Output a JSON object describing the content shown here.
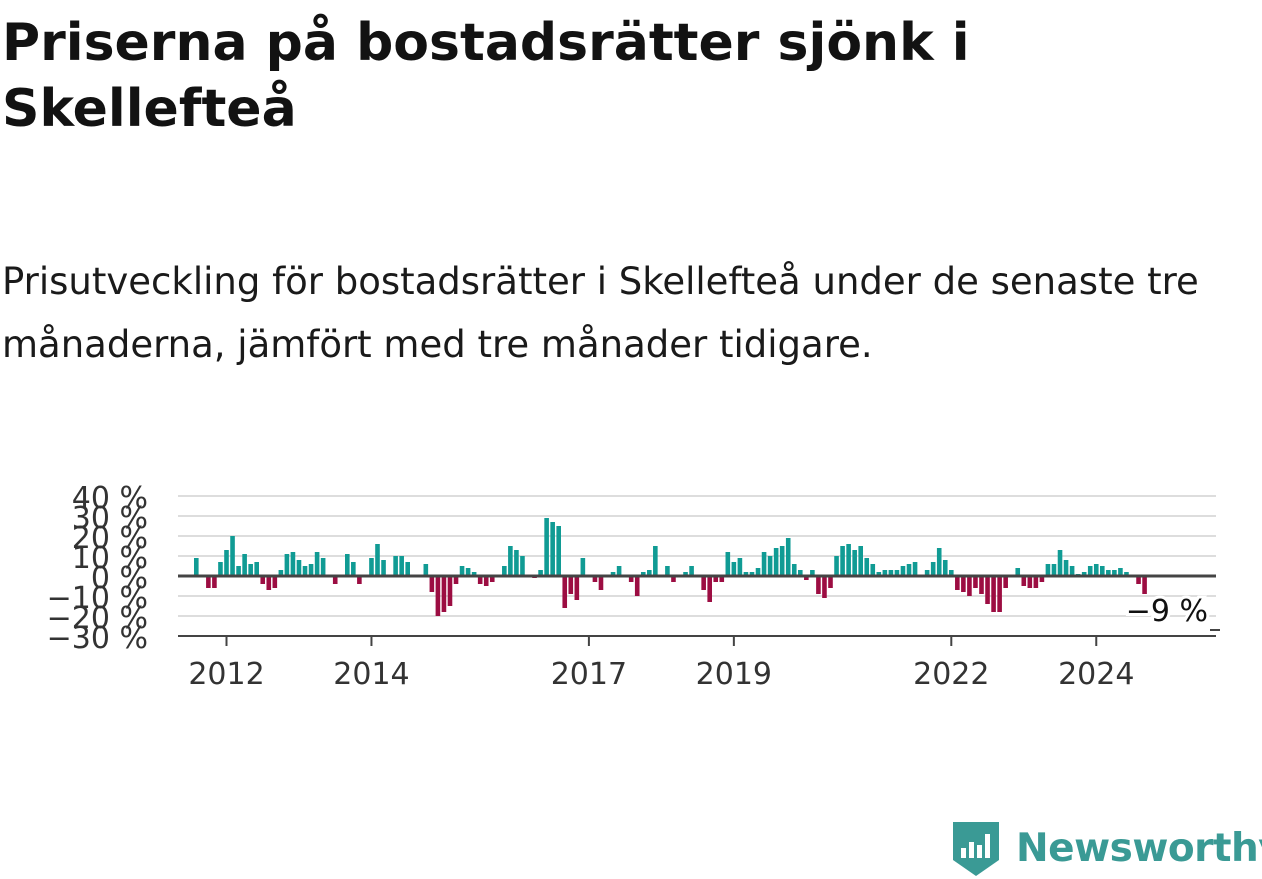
{
  "title": "Priserna på bostadsrätter sjönk i Skellefteå",
  "subtitle": "Prisutveckling för bostadsrätter i Skellefteå under de senaste tre månaderna, jämfört med tre månader tidigare.",
  "brand": {
    "name": "Newsworthy",
    "color": "#3a9a95",
    "icon": "newsworthy-bar-chart-badge-icon"
  },
  "chart_data": {
    "type": "bar",
    "x_start": "2011-08",
    "frequency": "monthly",
    "y_unit": "%",
    "ylim": [
      -30,
      40
    ],
    "yticks": [
      40,
      30,
      20,
      10,
      0,
      -10,
      -20,
      -30
    ],
    "ytick_labels": [
      "40 %",
      "30 %",
      "20 %",
      "10 %",
      "0 %",
      "−10 %",
      "−20 %",
      "−30 %"
    ],
    "xticks": [
      2012,
      2014,
      2017,
      2019,
      2022,
      2024
    ],
    "xtick_labels": [
      "2012",
      "2014",
      "2017",
      "2019",
      "2022",
      "2024"
    ],
    "colors": {
      "positive": "#109b94",
      "negative": "#9c0d42",
      "zero_line": "#444444",
      "grid": "#dddddd"
    },
    "annotation": {
      "label": "−9 %",
      "value": -9
    },
    "values": [
      9,
      0,
      -6,
      -6,
      7,
      13,
      20,
      5,
      11,
      6,
      7,
      -4,
      -7,
      -6,
      3,
      11,
      12,
      8,
      5,
      6,
      12,
      9,
      0,
      -4,
      0,
      11,
      7,
      -4,
      0,
      9,
      16,
      8,
      0,
      10,
      10,
      7,
      0,
      0,
      6,
      -8,
      -20,
      -18,
      -15,
      -4,
      5,
      4,
      2,
      -4,
      -5,
      -3,
      0,
      5,
      15,
      13,
      10,
      0,
      -1,
      3,
      29,
      27,
      25,
      -16,
      -9,
      -12,
      9,
      0,
      -3,
      -7,
      0,
      2,
      5,
      0,
      -3,
      -10,
      2,
      3,
      15,
      0,
      5,
      -3,
      0,
      2,
      5,
      0,
      -7,
      -13,
      -3,
      -3,
      12,
      7,
      9,
      2,
      2,
      4,
      12,
      10,
      14,
      15,
      19,
      6,
      3,
      -2,
      3,
      -9,
      -11,
      -6,
      10,
      15,
      16,
      13,
      15,
      9,
      6,
      2,
      3,
      3,
      3,
      5,
      6,
      7,
      0,
      3,
      7,
      14,
      8,
      3,
      -7,
      -8,
      -10,
      -6,
      -9,
      -14,
      -18,
      -18,
      -6,
      0,
      4,
      -5,
      -6,
      -6,
      -3,
      6,
      6,
      13,
      8,
      5,
      1,
      2,
      5,
      6,
      5,
      3,
      3,
      4,
      2,
      0,
      -4,
      -9
    ]
  }
}
